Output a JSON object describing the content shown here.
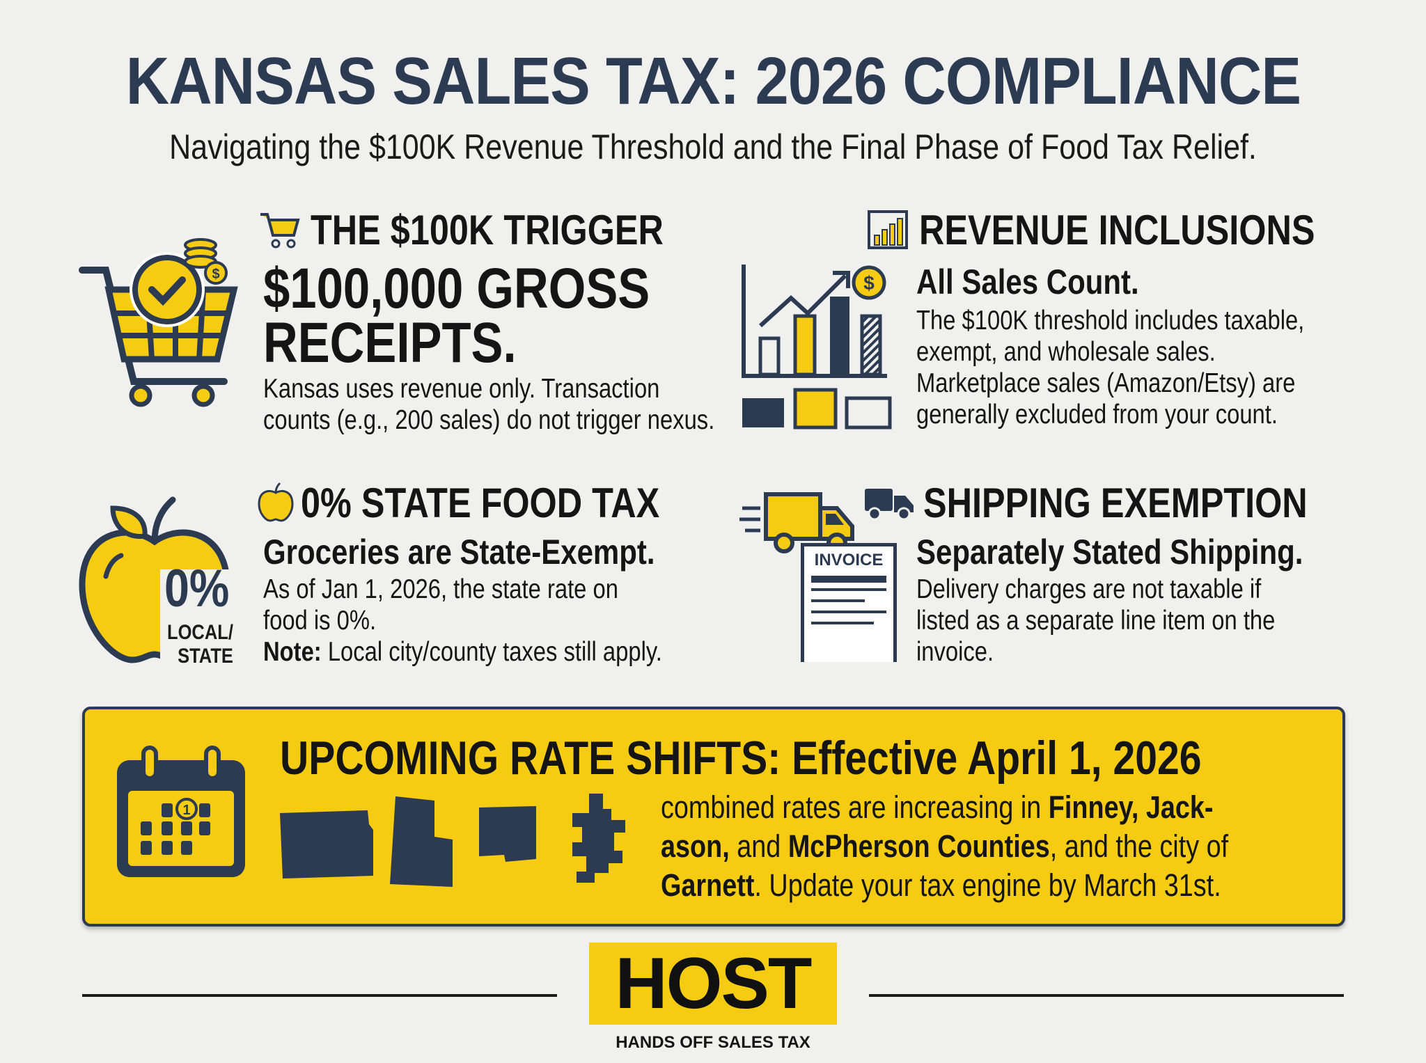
{
  "title": "KANSAS SALES TAX: 2026 COMPLIANCE",
  "subtitle": "Navigating the $100K Revenue Threshold and the Final Phase of Food Tax Relief.",
  "colors": {
    "navy": "#2c3a52",
    "yellow": "#f6cc12",
    "background": "#f0f0ee"
  },
  "sections": {
    "trigger": {
      "icon": "shopping-cart-icon",
      "heading": "THE $100K TRIGGER",
      "highlight_lines": [
        "$100,000 GROSS",
        "RECEIPTS."
      ],
      "body_lines": [
        "Kansas uses revenue only. Transaction",
        "counts (e.g., 200 sales) do not trigger nexus."
      ]
    },
    "revenue": {
      "icon": "bar-chart-icon",
      "heading": "REVENUE INCLUSIONS",
      "subheading": "All Sales Count.",
      "body_lines": [
        "The $100K threshold includes taxable,",
        "exempt, and wholesale sales.",
        "Marketplace sales (Amazon/Etsy) are",
        "generally excluded from your count."
      ]
    },
    "food": {
      "icon": "apple-icon",
      "heading": "0% STATE FOOD TAX",
      "badge_value": "0%",
      "badge_label_1": "LOCAL/",
      "badge_label_2": "STATE",
      "subheading": "Groceries are State-Exempt.",
      "body_lines": [
        "As of Jan 1, 2026, the state rate on",
        "food is 0%."
      ],
      "note_label": "Note:",
      "note_text": " Local city/county taxes still apply."
    },
    "shipping": {
      "icon": "truck-icon",
      "heading": "SHIPPING EXEMPTION",
      "invoice_label": "INVOICE",
      "subheading": "Separately Stated Shipping.",
      "body_lines": [
        "Delivery charges are not taxable if",
        "listed as a separate line item on the",
        "invoice."
      ]
    }
  },
  "banner": {
    "title": "UPCOMING RATE SHIFTS: Effective April 1, 2026",
    "calendar_day": "1",
    "line1_a": "combined rates are increasing in ",
    "line1_b": "Finney, Jack-",
    "line2_a": "ason,",
    "line2_b": " and ",
    "line2_c": "McPherson Counties",
    "line2_d": ", and the city of",
    "line3_a": "Garnett",
    "line3_b": ". Update your tax engine by March 31st."
  },
  "footer": {
    "logo": "HOST",
    "tagline": "HANDS OFF SALES TAX"
  }
}
